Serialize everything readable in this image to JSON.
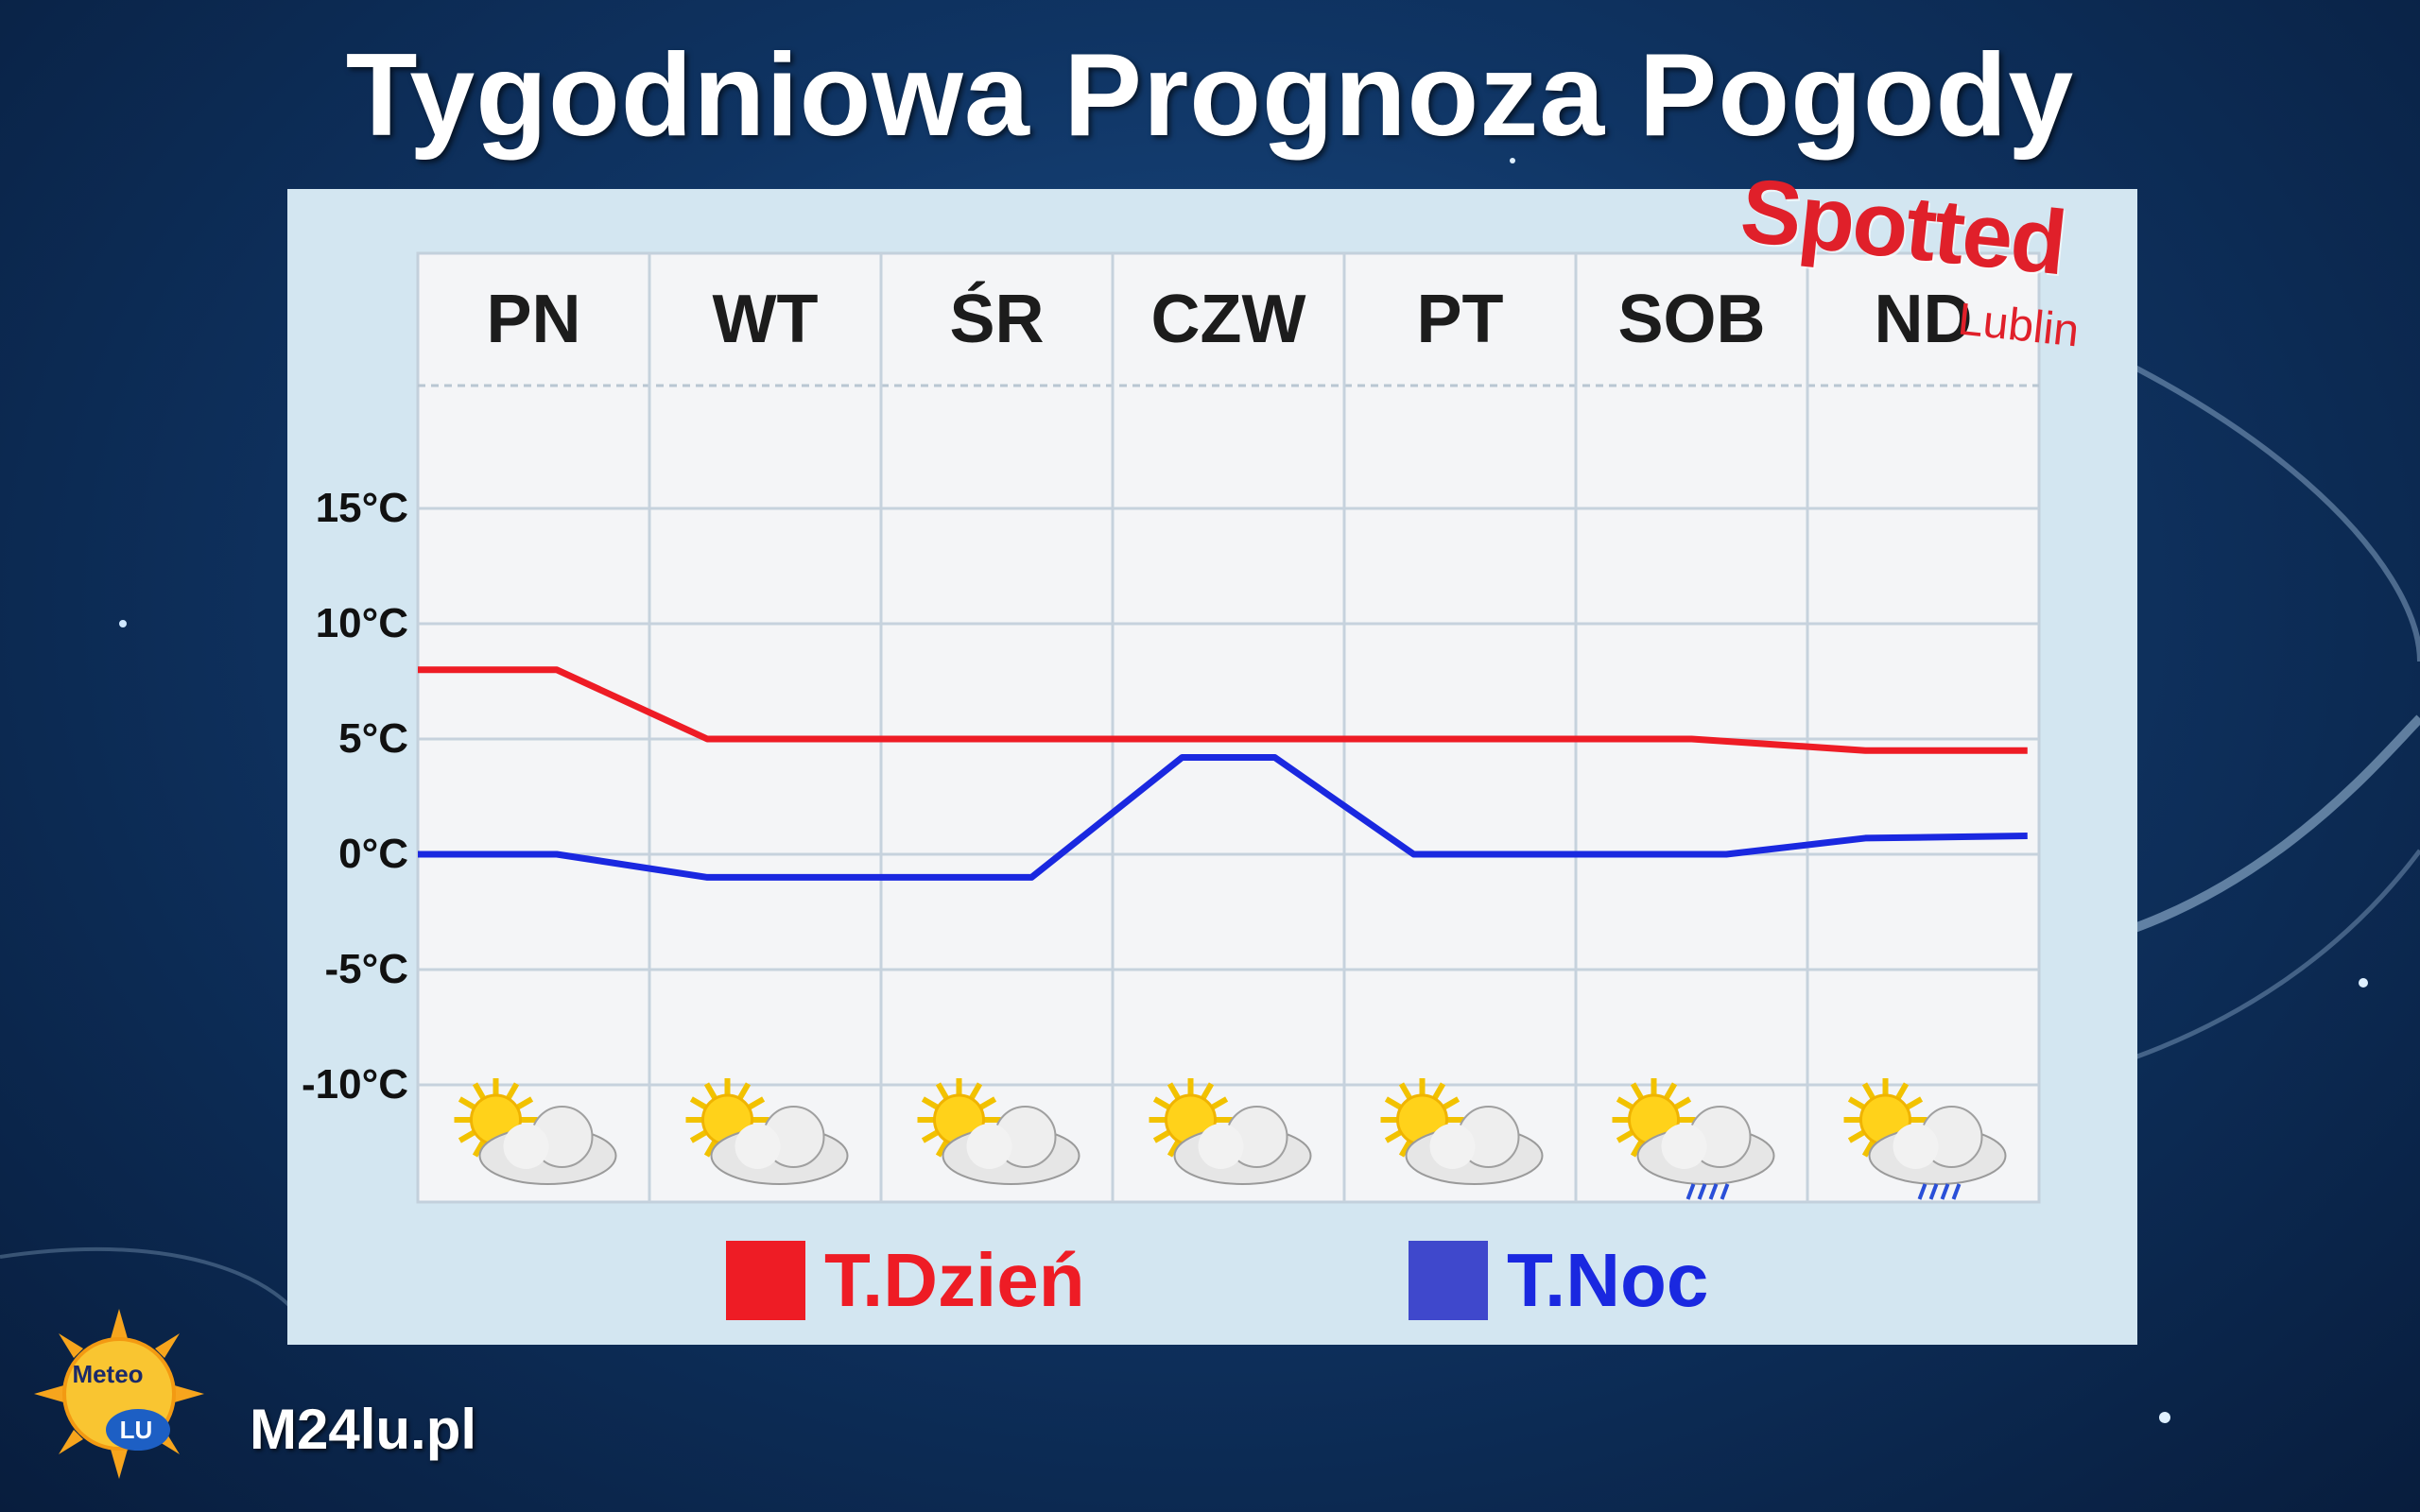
{
  "title": "Tygodniowa Prognoza Pogody",
  "brand_logo": {
    "word": "Spotted",
    "sub": "Lublin"
  },
  "site": "M24lu.pl",
  "meteo_logo": {
    "top": "Meteo",
    "bottom": "LU"
  },
  "colors": {
    "day": "#ee1c25",
    "night": "#1a28e0",
    "day_swatch": "#ee1c25",
    "night_swatch": "#3f48cc"
  },
  "icons": [
    "sun-cloud-icon",
    "sun-cloud-icon",
    "sun-cloud-icon",
    "sun-cloud-icon",
    "sun-cloud-icon",
    "sun-cloud-rain-icon",
    "sun-cloud-rain-icon"
  ],
  "chart_data": {
    "type": "line",
    "categories": [
      "PN",
      "WT",
      "ŚR",
      "CZW",
      "PT",
      "SOB",
      "ND"
    ],
    "yticks": [
      "15°C",
      "10°C",
      "5°C",
      "0°C",
      "-5°C",
      "-10°C"
    ],
    "ylim": [
      -10,
      15
    ],
    "grid": true,
    "legend_position": "bottom",
    "series": [
      {
        "name": "T.Dzień",
        "x": [
          0.0,
          0.6,
          1.25,
          2.5,
          3.5,
          4.5,
          5.5,
          6.25,
          6.95
        ],
        "values": [
          8,
          8,
          5,
          5,
          5,
          5,
          5,
          4.5,
          4.5
        ]
      },
      {
        "name": "T.Noc",
        "x": [
          0.0,
          0.6,
          1.25,
          2.3,
          2.65,
          3.3,
          3.7,
          4.3,
          5.25,
          5.65,
          6.25,
          6.95
        ],
        "values": [
          0,
          0,
          -1,
          -1,
          -1,
          4.2,
          4.2,
          0,
          0,
          0,
          0.7,
          0.8
        ]
      }
    ]
  }
}
